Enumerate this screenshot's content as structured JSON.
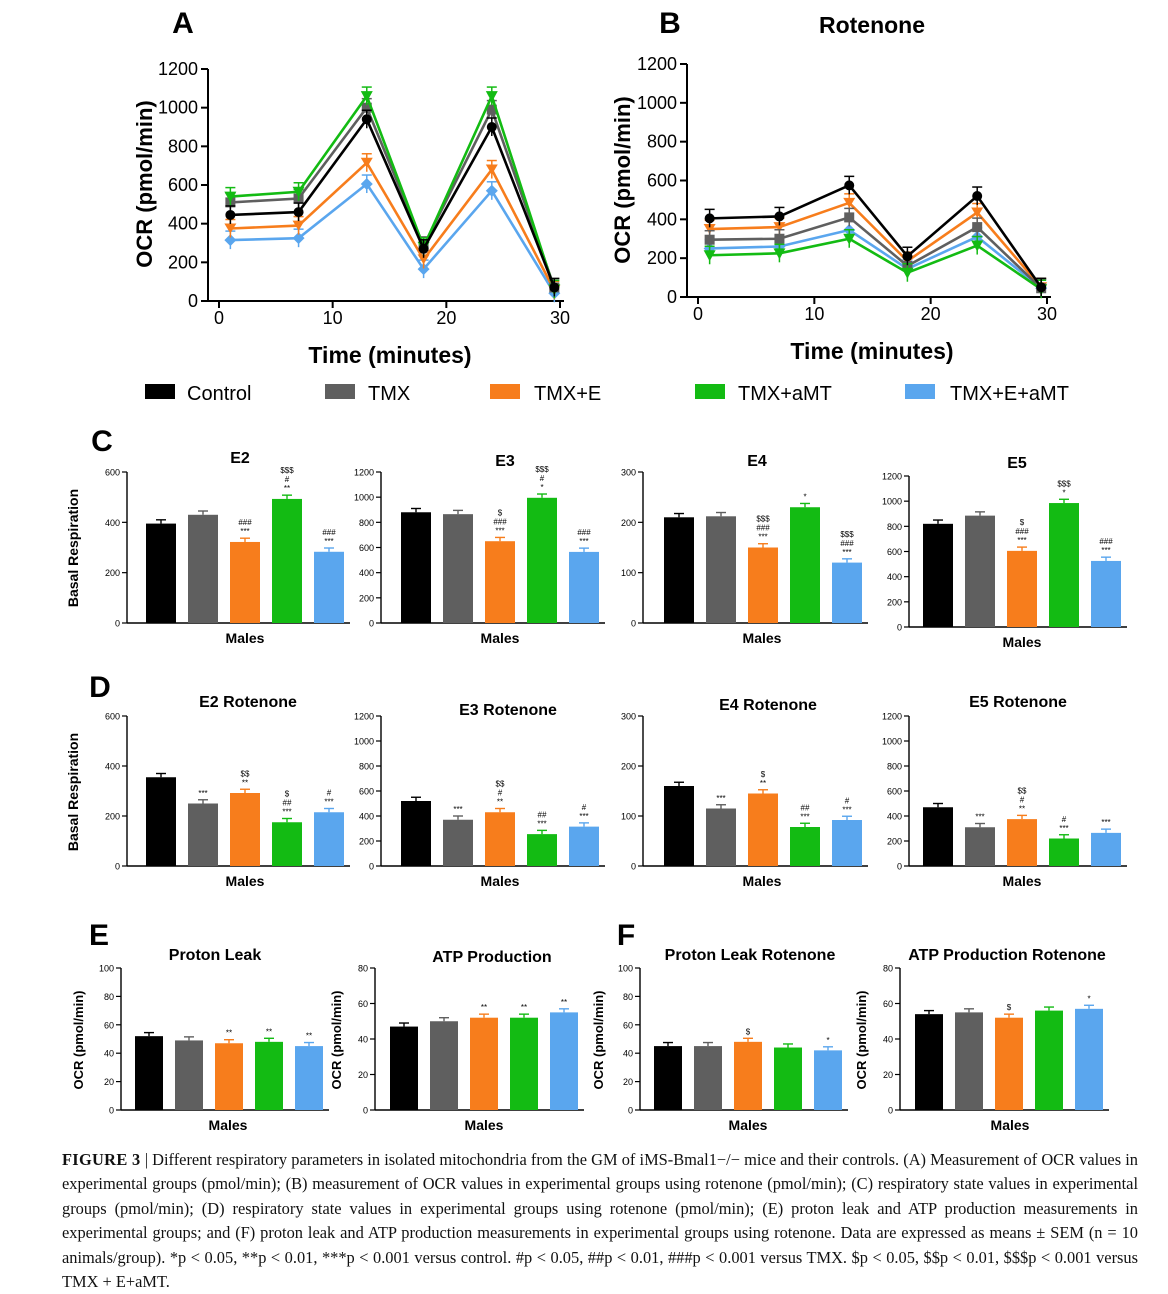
{
  "legend": [
    {
      "label": "Control",
      "color": "#000000"
    },
    {
      "label": "TMX",
      "color": "#5f5f5f"
    },
    {
      "label": "TMX+E",
      "color": "#f77d1c"
    },
    {
      "label": "TMX+aMT",
      "color": "#13bb13"
    },
    {
      "label": "TMX+E+aMT",
      "color": "#5aa6ee"
    }
  ],
  "panel_letters": {
    "a": "A",
    "b": "B",
    "c": "C",
    "d": "D",
    "e": "E",
    "f": "F"
  },
  "row_labels": {
    "basal": "Basal Respiration",
    "ocr": "OCR (pmol/min)",
    "males": "Males"
  },
  "chart_data": [
    {
      "id": "A",
      "type": "line",
      "letter": "A",
      "title": "",
      "xlabel": "Time (minutes)",
      "ylabel": "OCR (pmol/min)",
      "xlim": [
        0,
        30
      ],
      "ylim": [
        0,
        1200
      ],
      "xticks": [
        0,
        10,
        20,
        30
      ],
      "yticks": [
        0,
        200,
        400,
        600,
        800,
        1000,
        1200
      ],
      "x": [
        1,
        7,
        13,
        18,
        24,
        29.5
      ],
      "series": [
        {
          "name": "Control",
          "values": [
            445,
            460,
            940,
            270,
            900,
            70
          ]
        },
        {
          "name": "TMX",
          "values": [
            510,
            530,
            1000,
            285,
            990,
            70
          ]
        },
        {
          "name": "TMX+E",
          "values": [
            375,
            390,
            715,
            215,
            680,
            55
          ]
        },
        {
          "name": "TMX+aMT",
          "values": [
            540,
            565,
            1060,
            280,
            1060,
            60
          ]
        },
        {
          "name": "TMX+E+aMT",
          "values": [
            315,
            325,
            605,
            165,
            570,
            40
          ]
        }
      ]
    },
    {
      "id": "B",
      "type": "line",
      "letter": "B",
      "title": "Rotenone",
      "xlabel": "Time (minutes)",
      "ylabel": "OCR (pmol/min)",
      "xlim": [
        0,
        30
      ],
      "ylim": [
        0,
        1200
      ],
      "xticks": [
        0,
        10,
        20,
        30
      ],
      "yticks": [
        0,
        200,
        400,
        600,
        800,
        1000,
        1200
      ],
      "x": [
        1,
        7,
        13,
        18,
        24,
        29.5
      ],
      "series": [
        {
          "name": "Control",
          "values": [
            405,
            415,
            575,
            210,
            520,
            50
          ]
        },
        {
          "name": "TMX",
          "values": [
            295,
            300,
            410,
            160,
            360,
            45
          ]
        },
        {
          "name": "TMX+E",
          "values": [
            350,
            360,
            485,
            185,
            435,
            50
          ]
        },
        {
          "name": "TMX+aMT",
          "values": [
            215,
            225,
            300,
            125,
            265,
            40
          ]
        },
        {
          "name": "TMX+E+aMT",
          "values": [
            250,
            260,
            345,
            145,
            310,
            45
          ]
        }
      ]
    },
    {
      "id": "C-E2",
      "type": "bar",
      "title": "E2",
      "xlabel": "Males",
      "ylim": [
        0,
        600
      ],
      "yticks": [
        0,
        200,
        400,
        600
      ],
      "categories": [
        "Control",
        "TMX",
        "TMX+E",
        "TMX+aMT",
        "TMX+E+aMT"
      ],
      "values": [
        395,
        430,
        322,
        493,
        283
      ],
      "annotations": [
        [
          ""
        ],
        [
          ""
        ],
        [
          "###",
          "***"
        ],
        [
          "$$$",
          "#",
          "**"
        ],
        [
          "###",
          "***"
        ]
      ]
    },
    {
      "id": "C-E3",
      "type": "bar",
      "title": "E3",
      "xlabel": "Males",
      "ylim": [
        0,
        1200
      ],
      "yticks": [
        0,
        200,
        400,
        600,
        800,
        1000,
        1200
      ],
      "categories": [
        "Control",
        "TMX",
        "TMX+E",
        "TMX+aMT",
        "TMX+E+aMT"
      ],
      "values": [
        880,
        865,
        650,
        995,
        565
      ],
      "annotations": [
        [
          ""
        ],
        [
          ""
        ],
        [
          "$",
          "###",
          "***"
        ],
        [
          "$$$",
          "#",
          "*"
        ],
        [
          "###",
          "***"
        ]
      ]
    },
    {
      "id": "C-E4",
      "type": "bar",
      "title": "E4",
      "xlabel": "Males",
      "ylim": [
        0,
        300
      ],
      "yticks": [
        0,
        100,
        200,
        300
      ],
      "categories": [
        "Control",
        "TMX",
        "TMX+E",
        "TMX+aMT",
        "TMX+E+aMT"
      ],
      "values": [
        210,
        212,
        150,
        230,
        120
      ],
      "annotations": [
        [
          ""
        ],
        [
          ""
        ],
        [
          "$$$",
          "###",
          "***"
        ],
        [
          "*"
        ],
        [
          "$$$",
          "###",
          "***"
        ]
      ]
    },
    {
      "id": "C-E5",
      "type": "bar",
      "title": "E5",
      "xlabel": "Males",
      "ylim": [
        0,
        1200
      ],
      "yticks": [
        0,
        200,
        400,
        600,
        800,
        1000,
        1200
      ],
      "categories": [
        "Control",
        "TMX",
        "TMX+E",
        "TMX+aMT",
        "TMX+E+aMT"
      ],
      "values": [
        820,
        885,
        605,
        985,
        525
      ],
      "annotations": [
        [
          ""
        ],
        [
          ""
        ],
        [
          "$",
          "###",
          "***"
        ],
        [
          "$$$",
          "*"
        ],
        [
          "###",
          "***"
        ]
      ]
    },
    {
      "id": "D-E2",
      "type": "bar",
      "title": "E2 Rotenone",
      "xlabel": "Males",
      "ylim": [
        0,
        600
      ],
      "yticks": [
        0,
        200,
        400,
        600
      ],
      "categories": [
        "Control",
        "TMX",
        "TMX+E",
        "TMX+aMT",
        "TMX+E+aMT"
      ],
      "values": [
        355,
        250,
        292,
        175,
        215
      ],
      "annotations": [
        [
          ""
        ],
        [
          "***"
        ],
        [
          "$$",
          "**"
        ],
        [
          "$",
          "##",
          "***"
        ],
        [
          "#",
          "***"
        ]
      ]
    },
    {
      "id": "D-E3",
      "type": "bar",
      "title": "E3 Rotenone",
      "xlabel": "Males",
      "ylim": [
        0,
        1200
      ],
      "yticks": [
        0,
        200,
        400,
        600,
        800,
        1000,
        1200
      ],
      "categories": [
        "Control",
        "TMX",
        "TMX+E",
        "TMX+aMT",
        "TMX+E+aMT"
      ],
      "values": [
        520,
        370,
        430,
        255,
        315
      ],
      "annotations": [
        [
          ""
        ],
        [
          "***"
        ],
        [
          "$$",
          "#",
          "**"
        ],
        [
          "##",
          "***"
        ],
        [
          "#",
          "***"
        ]
      ]
    },
    {
      "id": "D-E4",
      "type": "bar",
      "title": "E4 Rotenone",
      "xlabel": "Males",
      "ylim": [
        0,
        300
      ],
      "yticks": [
        0,
        100,
        200,
        300
      ],
      "categories": [
        "Control",
        "TMX",
        "TMX+E",
        "TMX+aMT",
        "TMX+E+aMT"
      ],
      "values": [
        160,
        115,
        145,
        78,
        92
      ],
      "annotations": [
        [
          ""
        ],
        [
          "***"
        ],
        [
          "$",
          "**"
        ],
        [
          "##",
          "***"
        ],
        [
          "#",
          "***"
        ]
      ]
    },
    {
      "id": "D-E5",
      "type": "bar",
      "title": "E5 Rotenone",
      "xlabel": "Males",
      "ylim": [
        0,
        1200
      ],
      "yticks": [
        0,
        200,
        400,
        600,
        800,
        1000,
        1200
      ],
      "categories": [
        "Control",
        "TMX",
        "TMX+E",
        "TMX+aMT",
        "TMX+E+aMT"
      ],
      "values": [
        470,
        310,
        375,
        220,
        265
      ],
      "annotations": [
        [
          ""
        ],
        [
          "***"
        ],
        [
          "$$",
          "#",
          "**"
        ],
        [
          "#",
          "***"
        ],
        [
          "***"
        ]
      ]
    },
    {
      "id": "E-PL",
      "type": "bar",
      "title": "Proton Leak",
      "xlabel": "Males",
      "ylabel": "OCR (pmol/min)",
      "ylim": [
        0,
        100
      ],
      "yticks": [
        0,
        20,
        40,
        60,
        80,
        100
      ],
      "categories": [
        "Control",
        "TMX",
        "TMX+E",
        "TMX+aMT",
        "TMX+E+aMT"
      ],
      "values": [
        52,
        49,
        47,
        48,
        45
      ],
      "annotations": [
        [
          ""
        ],
        [
          ""
        ],
        [
          "**"
        ],
        [
          "**"
        ],
        [
          "**"
        ]
      ]
    },
    {
      "id": "E-ATP",
      "type": "bar",
      "title": "ATP Production",
      "xlabel": "Males",
      "ylabel": "OCR (pmol/min)",
      "ylim": [
        0,
        80
      ],
      "yticks": [
        0,
        20,
        40,
        60,
        80
      ],
      "categories": [
        "Control",
        "TMX",
        "TMX+E",
        "TMX+aMT",
        "TMX+E+aMT"
      ],
      "values": [
        47,
        50,
        52,
        52,
        55
      ],
      "annotations": [
        [
          ""
        ],
        [
          ""
        ],
        [
          "**"
        ],
        [
          "**"
        ],
        [
          "**"
        ]
      ]
    },
    {
      "id": "F-PL",
      "type": "bar",
      "title": "Proton Leak Rotenone",
      "xlabel": "Males",
      "ylabel": "OCR (pmol/min)",
      "ylim": [
        0,
        100
      ],
      "yticks": [
        0,
        20,
        40,
        60,
        80,
        100
      ],
      "categories": [
        "Control",
        "TMX",
        "TMX+E",
        "TMX+aMT",
        "TMX+E+aMT"
      ],
      "values": [
        45,
        45,
        48,
        44,
        42
      ],
      "annotations": [
        [
          ""
        ],
        [
          ""
        ],
        [
          "$"
        ],
        [
          ""
        ],
        [
          "*"
        ]
      ]
    },
    {
      "id": "F-ATP",
      "type": "bar",
      "title": "ATP Production Rotenone",
      "xlabel": "Males",
      "ylabel": "OCR (pmol/min)",
      "ylim": [
        0,
        80
      ],
      "yticks": [
        0,
        20,
        40,
        60,
        80
      ],
      "categories": [
        "Control",
        "TMX",
        "TMX+E",
        "TMX+aMT",
        "TMX+E+aMT"
      ],
      "values": [
        54,
        55,
        52,
        56,
        57
      ],
      "annotations": [
        [
          ""
        ],
        [
          ""
        ],
        [
          "$"
        ],
        [
          ""
        ],
        [
          "*"
        ]
      ]
    }
  ],
  "caption": {
    "label": "FIGURE 3",
    "sep": "|",
    "text": "Different respiratory parameters in isolated mitochondria from the GM of iMS-Bmal1−/− mice and their controls. (A) Measurement of OCR values in experimental groups (pmol/min); (B) measurement of OCR values in experimental groups using rotenone (pmol/min); (C) respiratory state values in experimental groups (pmol/min); (D) respiratory state values in experimental groups using rotenone (pmol/min); (E) proton leak and ATP production measurements in experimental groups; and (F) proton leak and ATP production measurements in experimental groups using rotenone. Data are expressed as means ± SEM (n = 10 animals/group). *p < 0.05, **p < 0.01, ***p < 0.001 versus control. #p < 0.05, ##p < 0.01, ###p < 0.001 versus TMX. $p < 0.05, $$p < 0.01, $$$p < 0.001 versus TMX + E+aMT."
  }
}
